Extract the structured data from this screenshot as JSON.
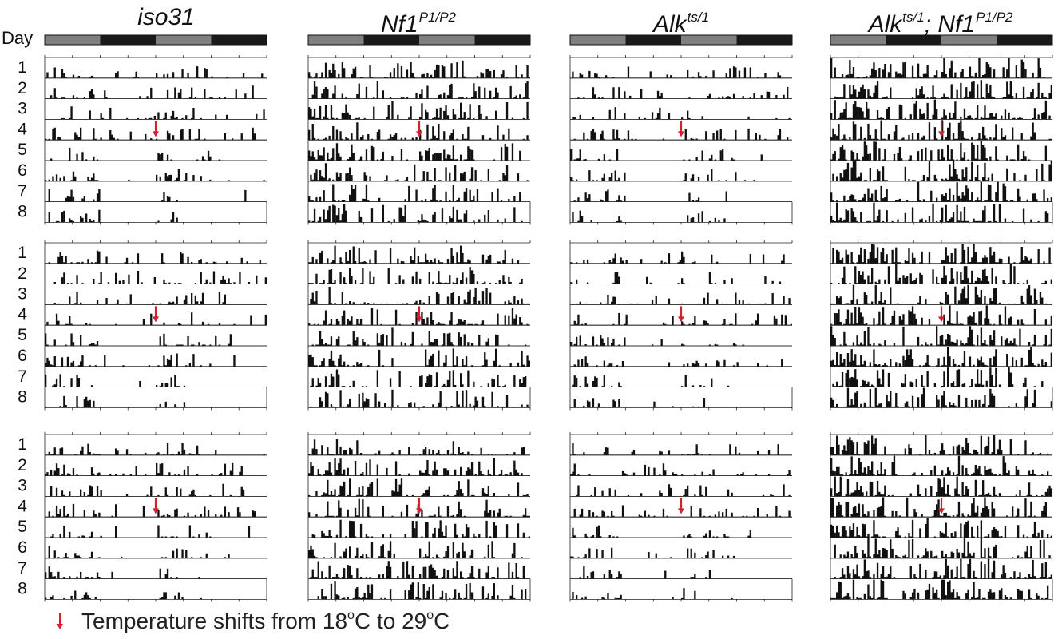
{
  "figure": {
    "day_axis_label": "Day",
    "legend": {
      "pre": "Temperature shifts from 18",
      "sup1": "o",
      "mid": "C to 29",
      "sup2": "o",
      "post": "C",
      "arrow_color": "#d6202e"
    },
    "bar_color": "#111111",
    "light_phase_color": "#7f7f7f",
    "dark_phase_color": "#1a1a1a"
  },
  "chart_data": {
    "type": "actogram",
    "genotypes": [
      {
        "name": "iso31",
        "sup": ""
      },
      {
        "name": "Nf1",
        "sup": "P1/P2"
      },
      {
        "name": "Alk",
        "sup": "ts/1"
      },
      {
        "name": "Alk",
        "sup": "ts/1",
        "name2": "; Nf1",
        "sup2": "P1/P2"
      }
    ],
    "replicates_per_genotype": 3,
    "days": [
      "1",
      "2",
      "3",
      "4",
      "5",
      "6",
      "7",
      "8"
    ],
    "light_dark_bar": [
      "light",
      "dark",
      "light",
      "dark"
    ],
    "temperature_shift": {
      "day": 4,
      "from_c": 18,
      "to_c": 29
    },
    "activity_level_by_genotype": [
      0.35,
      0.6,
      0.3,
      0.75
    ]
  }
}
